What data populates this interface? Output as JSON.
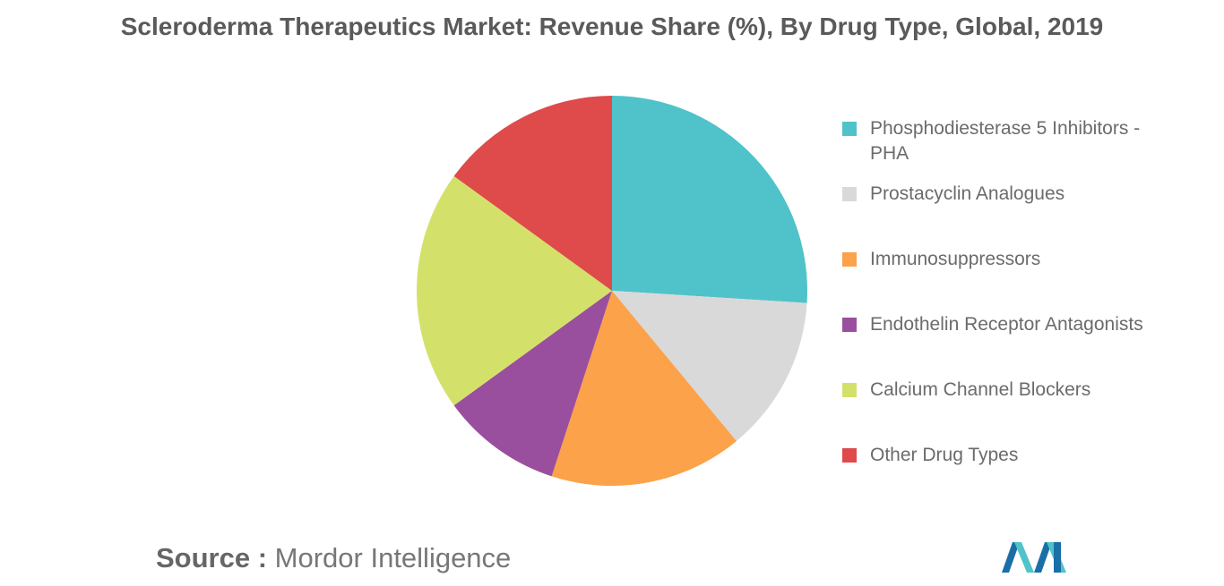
{
  "chart_data": {
    "type": "pie",
    "title": "Scleroderma Therapeutics Market: Revenue Share (%), By Drug Type, Global, 2019",
    "categories": [
      "Phosphodiesterase 5 Inhibitors - PHA",
      "Prostacyclin Analogues",
      "Immunosuppressors",
      "Endothelin Receptor Antagonists",
      "Calcium Channel Blockers",
      "Other Drug Types"
    ],
    "values": [
      26,
      13,
      16,
      10,
      20,
      15
    ],
    "colors": [
      "#4fc3c9",
      "#d9d9d9",
      "#fba24a",
      "#9a4f9e",
      "#d3e16b",
      "#df4a4b"
    ],
    "legend_position": "right",
    "source_label": "Source :",
    "source": "Mordor Intelligence"
  },
  "logo": {
    "icon": "mordor-intelligence-logo",
    "colors": [
      "#1a6fa8",
      "#4fc3c9"
    ]
  }
}
